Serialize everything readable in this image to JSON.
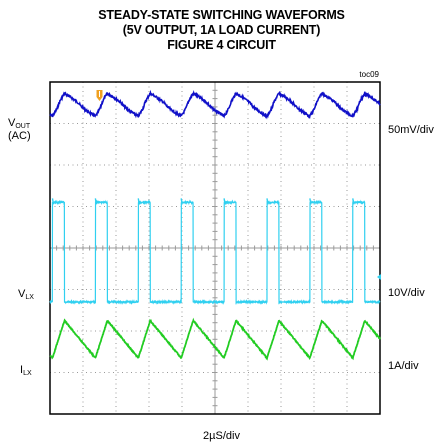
{
  "header": {
    "title_line1": "STEADY-STATE SWITCHING WAVEFORMS",
    "title_line2": "(5V OUTPUT, 1A LOAD CURRENT)",
    "title_line3": "FIGURE 4 CIRCUIT",
    "figure_code": "toc09"
  },
  "channels": {
    "vout": {
      "name": "V",
      "sub": "OUT",
      "coupling": "(AC)",
      "scale": "50mV/div"
    },
    "vlx": {
      "name": "V",
      "sub": "LX",
      "scale": "10V/div"
    },
    "ilx": {
      "name": "I",
      "sub": "LX",
      "scale": "1A/div"
    }
  },
  "timebase": {
    "label": "2µS/div"
  },
  "colors": {
    "vout": "#1010c8",
    "vlx": "#30d0f0",
    "ilx": "#22cc22",
    "grid": "#9a9a9a",
    "frame": "#000000",
    "trigger": "#f0a020"
  },
  "chart_data": {
    "type": "line",
    "title": "STEADY-STATE SWITCHING WAVEFORMS (5V OUTPUT, 1A LOAD CURRENT) FIGURE 4 CIRCUIT",
    "xlabel": "2µS/div",
    "x_unit": "µs",
    "xlim": [
      0,
      20
    ],
    "grid": true,
    "divisions": {
      "x": 10,
      "y": 8
    },
    "switching_period_us": 2.6,
    "series": [
      {
        "name": "VOUT (AC)",
        "scale": "50mV/div",
        "shape": "ripple",
        "peak_to_peak_div": 0.55
      },
      {
        "name": "VLX",
        "scale": "10V/div",
        "shape": "square",
        "high_div": 2.4,
        "duty": 0.28
      },
      {
        "name": "ILX",
        "scale": "1A/div",
        "shape": "triangle",
        "peak_to_peak_div": 0.9
      }
    ]
  }
}
